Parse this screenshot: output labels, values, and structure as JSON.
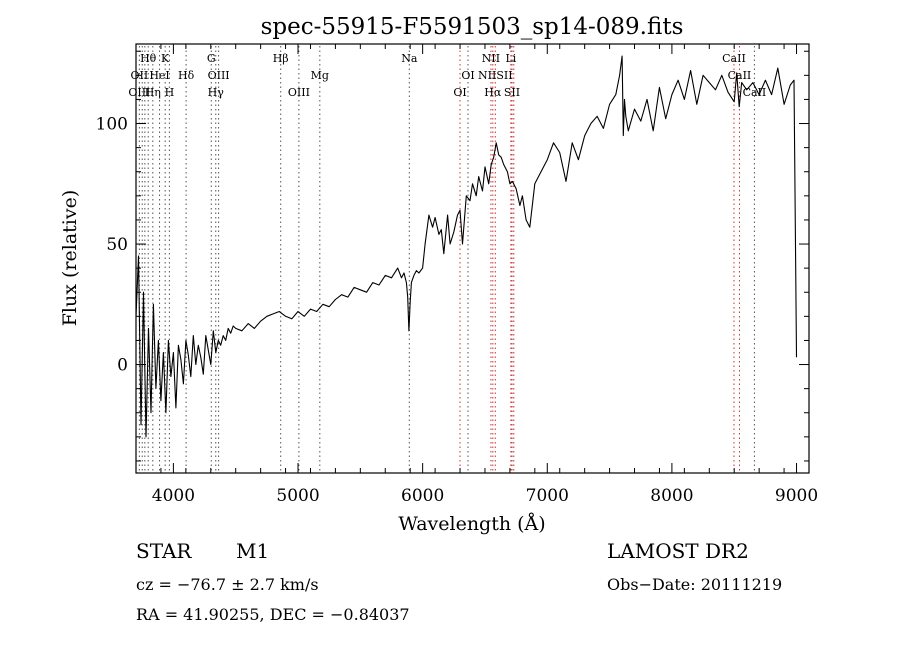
{
  "chart_data": {
    "type": "line",
    "title": "spec-55915-F5591503_sp14-089.fits",
    "xlabel": "Wavelength (Å)",
    "ylabel": "Flux (relative)",
    "xlim": [
      3700,
      9100
    ],
    "ylim": [
      -45,
      133
    ],
    "xticks": [
      4000,
      5000,
      6000,
      7000,
      8000,
      9000
    ],
    "yticks": [
      0,
      50,
      100
    ],
    "grid": false,
    "series": [
      {
        "x": [
          3700,
          3720,
          3740,
          3760,
          3780,
          3800,
          3820,
          3840,
          3860,
          3880,
          3900,
          3920,
          3940,
          3960,
          3980,
          4000,
          4020,
          4040,
          4060,
          4080,
          4100,
          4120,
          4140,
          4160,
          4180,
          4200,
          4220,
          4240,
          4260,
          4280,
          4300,
          4320,
          4340,
          4360,
          4380,
          4400,
          4420,
          4440,
          4460,
          4480,
          4500,
          4550,
          4600,
          4650,
          4700,
          4750,
          4800,
          4850,
          4900,
          4950,
          5000,
          5050,
          5100,
          5150,
          5200,
          5250,
          5300,
          5350,
          5400,
          5450,
          5500,
          5550,
          5600,
          5650,
          5700,
          5750,
          5800,
          5830,
          5850,
          5870,
          5880,
          5890,
          5900,
          5910,
          5930,
          5950,
          5970,
          6000,
          6020,
          6050,
          6080,
          6100,
          6130,
          6150,
          6170,
          6200,
          6220,
          6250,
          6280,
          6300,
          6320,
          6350,
          6380,
          6400,
          6430,
          6450,
          6480,
          6500,
          6530,
          6550,
          6570,
          6590,
          6610,
          6630,
          6650,
          6680,
          6700,
          6720,
          6750,
          6780,
          6800,
          6830,
          6860,
          6900,
          6950,
          7000,
          7050,
          7100,
          7150,
          7200,
          7250,
          7300,
          7350,
          7400,
          7450,
          7500,
          7550,
          7580,
          7600,
          7610,
          7620,
          7630,
          7650,
          7700,
          7750,
          7800,
          7850,
          7900,
          7950,
          8000,
          8050,
          8100,
          8150,
          8200,
          8250,
          8300,
          8350,
          8400,
          8450,
          8500,
          8520,
          8540,
          8560,
          8600,
          8650,
          8700,
          8750,
          8800,
          8850,
          8900,
          8950,
          8980,
          9000
        ],
        "y": [
          20,
          45,
          -25,
          30,
          -30,
          15,
          -20,
          25,
          -10,
          10,
          -15,
          5,
          -20,
          10,
          -5,
          5,
          -18,
          8,
          2,
          -8,
          10,
          4,
          -5,
          12,
          0,
          8,
          3,
          -4,
          12,
          6,
          0,
          14,
          5,
          10,
          8,
          12,
          10,
          15,
          13,
          16,
          15,
          14,
          17,
          15,
          18,
          20,
          21,
          22,
          20,
          19,
          22,
          20,
          23,
          22,
          25,
          24,
          27,
          29,
          28,
          32,
          31,
          30,
          34,
          33,
          37,
          36,
          40,
          36,
          38,
          34,
          28,
          14,
          26,
          34,
          37,
          39,
          38,
          40,
          50,
          62,
          57,
          61,
          54,
          56,
          46,
          62,
          50,
          55,
          62,
          64,
          50,
          70,
          68,
          75,
          70,
          78,
          72,
          82,
          75,
          83,
          86,
          92,
          87,
          86,
          83,
          80,
          75,
          76,
          73,
          66,
          70,
          60,
          57,
          75,
          80,
          85,
          92,
          88,
          76,
          92,
          85,
          95,
          100,
          103,
          98,
          108,
          112,
          120,
          128,
          95,
          110,
          103,
          97,
          106,
          101,
          110,
          97,
          115,
          102,
          112,
          118,
          110,
          122,
          108,
          120,
          117,
          114,
          120,
          113,
          109,
          121,
          107,
          117,
          114,
          117,
          112,
          118,
          112,
          123,
          108,
          116,
          118,
          3
        ]
      }
    ],
    "line_markers": [
      {
        "name": "Hθ",
        "wl": 3798,
        "row": 0,
        "color": "#000000"
      },
      {
        "name": "K",
        "wl": 3934,
        "row": 0,
        "color": "#000000"
      },
      {
        "name": "G",
        "wl": 4304,
        "row": 0,
        "color": "#000000"
      },
      {
        "name": "Hβ",
        "wl": 4861,
        "row": 0,
        "color": "#000000"
      },
      {
        "name": "Na",
        "wl": 5893,
        "row": 0,
        "color": "#000000"
      },
      {
        "name": "NII",
        "wl": 6548,
        "row": 0,
        "color": "#000000"
      },
      {
        "name": "Li",
        "wl": 6708,
        "row": 0,
        "color": "#000000"
      },
      {
        "name": "CaII",
        "wl": 8498,
        "row": 0,
        "color": "#000000"
      },
      {
        "name": "OII",
        "wl": 3727,
        "row": 1,
        "color": "#000000"
      },
      {
        "name": "HeI",
        "wl": 3889,
        "row": 1,
        "color": "#000000"
      },
      {
        "name": "Hδ",
        "wl": 4102,
        "row": 1,
        "color": "#000000"
      },
      {
        "name": "OIII",
        "wl": 4363,
        "row": 1,
        "color": "#000000"
      },
      {
        "name": "Mg",
        "wl": 5175,
        "row": 1,
        "color": "#000000"
      },
      {
        "name": "OI",
        "wl": 6364,
        "row": 1,
        "color": "#000000"
      },
      {
        "name": "NIISII",
        "wl": 6583,
        "row": 1,
        "color": "#000000"
      },
      {
        "name": "CaII",
        "wl": 8542,
        "row": 1,
        "color": "#000000"
      },
      {
        "name": "OIII",
        "wl": 3727,
        "row": 2,
        "color": "#000000"
      },
      {
        "name": "Hη",
        "wl": 3835,
        "row": 2,
        "color": "#000000"
      },
      {
        "name": "H",
        "wl": 3968,
        "row": 2,
        "color": "#000000"
      },
      {
        "name": "Hγ",
        "wl": 4340,
        "row": 2,
        "color": "#000000"
      },
      {
        "name": "OIII",
        "wl": 5007,
        "row": 2,
        "color": "#000000"
      },
      {
        "name": "OI",
        "wl": 6300,
        "row": 2,
        "color": "#000000"
      },
      {
        "name": "Hα",
        "wl": 6563,
        "row": 2,
        "color": "#000000"
      },
      {
        "name": "SII",
        "wl": 6717,
        "row": 2,
        "color": "#000000"
      },
      {
        "name": "CaII",
        "wl": 8662,
        "row": 2,
        "color": "#000000"
      }
    ],
    "dotted_lines": [
      {
        "wl": 3727,
        "color": "#555555"
      },
      {
        "wl": 3750,
        "color": "#555555"
      },
      {
        "wl": 3771,
        "color": "#555555"
      },
      {
        "wl": 3798,
        "color": "#555555"
      },
      {
        "wl": 3835,
        "color": "#555555"
      },
      {
        "wl": 3889,
        "color": "#555555"
      },
      {
        "wl": 3934,
        "color": "#555555"
      },
      {
        "wl": 3968,
        "color": "#555555"
      },
      {
        "wl": 4102,
        "color": "#555555"
      },
      {
        "wl": 4304,
        "color": "#555555"
      },
      {
        "wl": 4340,
        "color": "#555555"
      },
      {
        "wl": 4363,
        "color": "#555555"
      },
      {
        "wl": 4861,
        "color": "#555555"
      },
      {
        "wl": 5007,
        "color": "#555555"
      },
      {
        "wl": 5175,
        "color": "#555555"
      },
      {
        "wl": 5893,
        "color": "#555555"
      },
      {
        "wl": 6300,
        "color": "#cc3333"
      },
      {
        "wl": 6364,
        "color": "#555555"
      },
      {
        "wl": 6548,
        "color": "#cc3333"
      },
      {
        "wl": 6563,
        "color": "#cc3333"
      },
      {
        "wl": 6583,
        "color": "#cc3333"
      },
      {
        "wl": 6708,
        "color": "#cc3333"
      },
      {
        "wl": 6717,
        "color": "#cc3333"
      },
      {
        "wl": 6731,
        "color": "#cc3333"
      },
      {
        "wl": 8498,
        "color": "#cc3333"
      },
      {
        "wl": 8542,
        "color": "#cc3333"
      },
      {
        "wl": 8662,
        "color": "#555555"
      }
    ]
  },
  "info": {
    "class_label": "STAR",
    "subclass": "M1",
    "survey": "LAMOST DR2",
    "cz": "cz = −76.7 ± 2.7 km/s",
    "obs_date": "Obs−Date: 20111219",
    "coords": "RA =  41.90255, DEC =  −0.84037"
  }
}
